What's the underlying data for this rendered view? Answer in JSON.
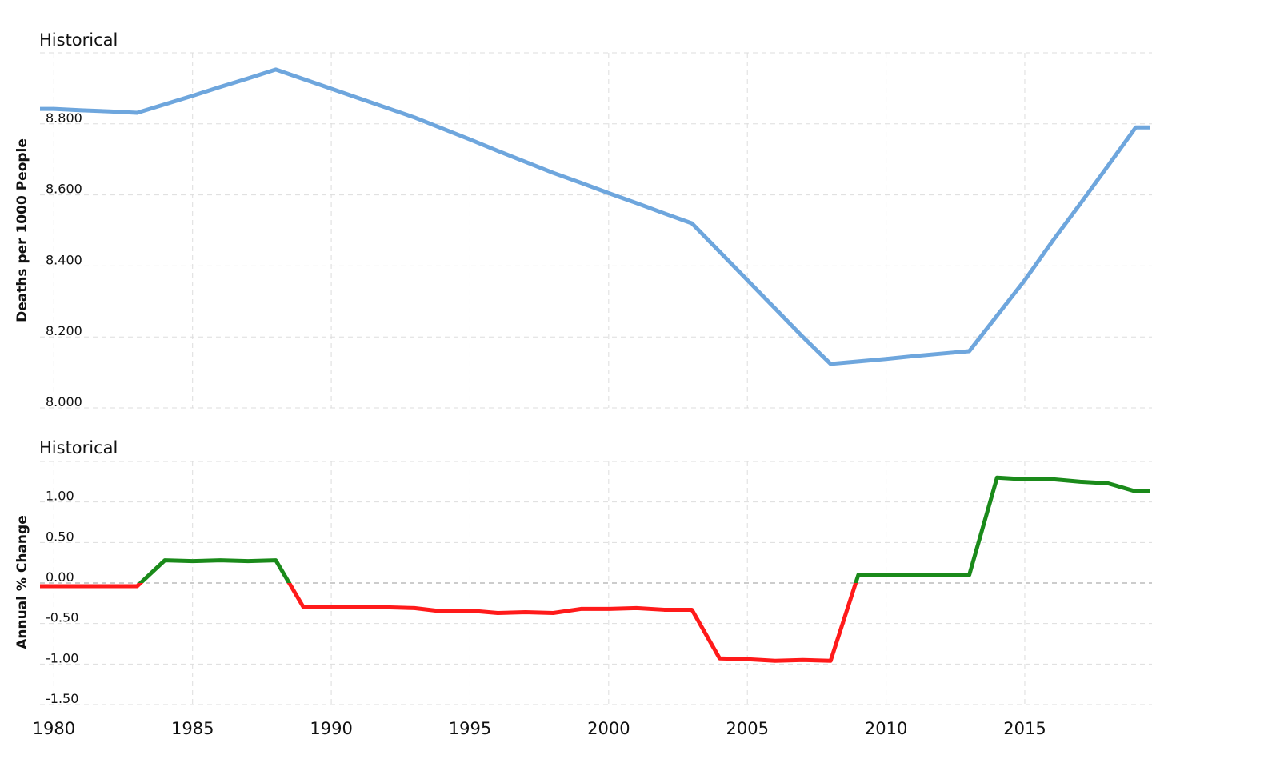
{
  "chart_data": [
    {
      "type": "line",
      "title": "Historical",
      "ylabel": "Deaths per 1000 People",
      "ylim": [
        8.0,
        9.0
      ],
      "xlim": [
        1979.5,
        2019.5
      ],
      "yticks": [
        "8.000",
        "8.200",
        "8.400",
        "8.600",
        "8.800"
      ],
      "ytick_values": [
        8.0,
        8.2,
        8.4,
        8.6,
        8.8
      ],
      "color": "#6ea6dd",
      "x": [
        1980,
        1981,
        1982,
        1983,
        1984,
        1985,
        1986,
        1987,
        1988,
        1989,
        1990,
        1991,
        1992,
        1993,
        1994,
        1995,
        1996,
        1997,
        1998,
        1999,
        2000,
        2001,
        2002,
        2003,
        2004,
        2005,
        2006,
        2007,
        2008,
        2009,
        2010,
        2011,
        2012,
        2013,
        2014,
        2015,
        2016,
        2017,
        2018,
        2019
      ],
      "values": [
        8.842,
        8.838,
        8.835,
        8.831,
        8.855,
        8.879,
        8.904,
        8.928,
        8.953,
        8.926,
        8.899,
        8.872,
        8.845,
        8.818,
        8.787,
        8.756,
        8.724,
        8.693,
        8.662,
        8.634,
        8.605,
        8.577,
        8.548,
        8.52,
        8.44,
        8.36,
        8.28,
        8.2,
        8.124,
        8.131,
        8.138,
        8.146,
        8.153,
        8.16,
        8.26,
        8.36,
        8.47,
        8.575,
        8.682,
        8.79
      ]
    },
    {
      "type": "line",
      "title": "Historical",
      "ylabel": "Annual % Change",
      "ylim": [
        -1.5,
        1.5
      ],
      "xlim": [
        1979.5,
        2019.5
      ],
      "yticks": [
        "-1.50",
        "-1.00",
        "-0.50",
        "0.00",
        "0.50",
        "1.00"
      ],
      "ytick_values": [
        -1.5,
        -1.0,
        -0.5,
        0,
        0.5,
        1.0
      ],
      "positive_color": "#1a8a1a",
      "negative_color": "#ff1a1a",
      "x": [
        1980,
        1981,
        1982,
        1983,
        1984,
        1985,
        1986,
        1987,
        1988,
        1989,
        1990,
        1991,
        1992,
        1993,
        1994,
        1995,
        1996,
        1997,
        1998,
        1999,
        2000,
        2001,
        2002,
        2003,
        2004,
        2005,
        2006,
        2007,
        2008,
        2009,
        2010,
        2011,
        2012,
        2013,
        2014,
        2015,
        2016,
        2017,
        2018,
        2019
      ],
      "values": [
        -0.04,
        -0.04,
        -0.04,
        -0.04,
        0.28,
        0.27,
        0.28,
        0.27,
        0.28,
        -0.3,
        -0.3,
        -0.3,
        -0.3,
        -0.31,
        -0.35,
        -0.34,
        -0.37,
        -0.36,
        -0.37,
        -0.32,
        -0.32,
        -0.31,
        -0.33,
        -0.33,
        -0.93,
        -0.94,
        -0.96,
        -0.95,
        -0.96,
        0.1,
        0.1,
        0.1,
        0.1,
        0.1,
        1.3,
        1.28,
        1.28,
        1.25,
        1.23,
        1.13
      ]
    }
  ],
  "xticks": [
    "1980",
    "1985",
    "1990",
    "1995",
    "2000",
    "2005",
    "2010",
    "2015"
  ],
  "xtick_values": [
    1980,
    1985,
    1990,
    1995,
    2000,
    2005,
    2010,
    2015
  ]
}
